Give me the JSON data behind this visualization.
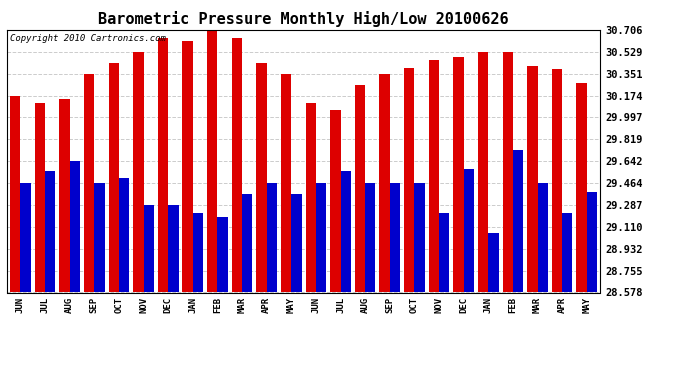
{
  "title": "Barometric Pressure Monthly High/Low 20100626",
  "copyright": "Copyright 2010 Cartronics.com",
  "months": [
    "JUN",
    "JUL",
    "AUG",
    "SEP",
    "OCT",
    "NOV",
    "DEC",
    "JAN",
    "FEB",
    "MAR",
    "APR",
    "MAY",
    "JUN",
    "JUL",
    "AUG",
    "SEP",
    "OCT",
    "NOV",
    "DEC",
    "JAN",
    "FEB",
    "MAR",
    "APR",
    "MAY"
  ],
  "highs": [
    30.174,
    30.115,
    30.147,
    30.351,
    30.44,
    30.529,
    30.638,
    30.618,
    30.706,
    30.638,
    30.44,
    30.351,
    30.115,
    30.06,
    30.263,
    30.351,
    30.396,
    30.46,
    30.49,
    30.529,
    30.529,
    30.416,
    30.39,
    30.28
  ],
  "lows": [
    29.464,
    29.56,
    29.642,
    29.464,
    29.51,
    29.287,
    29.287,
    29.22,
    29.19,
    29.375,
    29.464,
    29.375,
    29.464,
    29.56,
    29.464,
    29.464,
    29.464,
    29.22,
    29.58,
    29.06,
    29.73,
    29.464,
    29.22,
    29.39
  ],
  "bar_color_high": "#dd0000",
  "bar_color_low": "#0000cc",
  "bg_color": "#ffffff",
  "grid_color": "#cccccc",
  "title_fontsize": 11,
  "copyright_fontsize": 6.5,
  "yticks": [
    28.578,
    28.755,
    28.932,
    29.11,
    29.287,
    29.464,
    29.642,
    29.819,
    29.997,
    30.174,
    30.351,
    30.529,
    30.706
  ],
  "ymin": 28.578,
  "ymax": 30.706
}
